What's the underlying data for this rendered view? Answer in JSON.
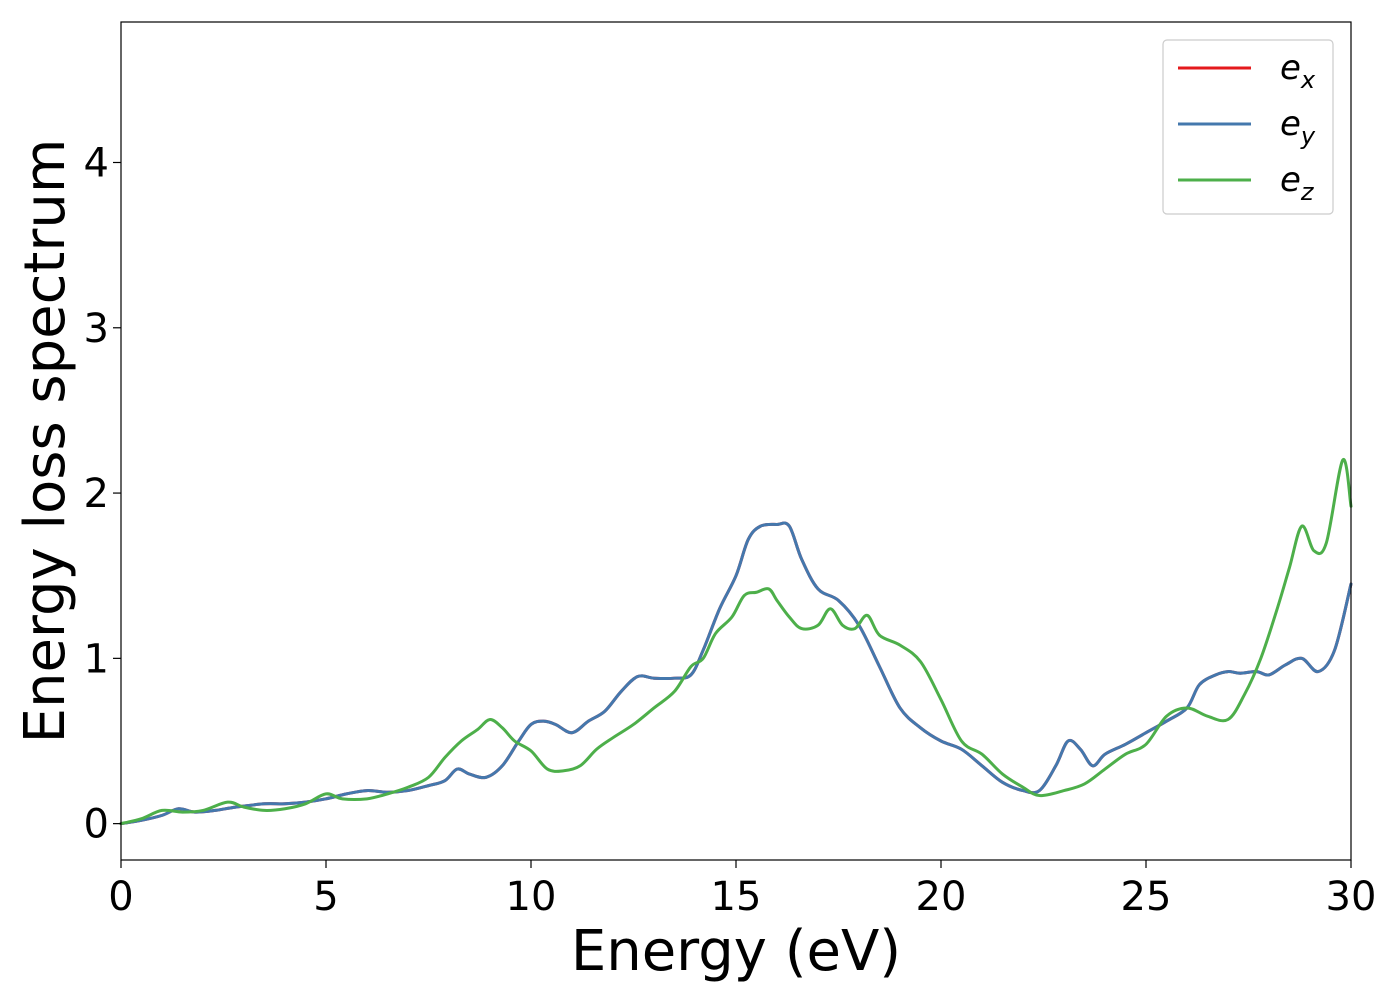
{
  "chart_data": {
    "type": "line",
    "xlabel": "Energy (eV)",
    "ylabel": "Energy loss spectrum",
    "xlim": [
      0,
      30
    ],
    "ylim": [
      -0.22,
      4.85
    ],
    "xticks": [
      0,
      5,
      10,
      15,
      20,
      25,
      30
    ],
    "xtick_labels": [
      "0",
      "5",
      "10",
      "15",
      "20",
      "25",
      "30"
    ],
    "yticks": [
      0,
      1,
      2,
      3,
      4
    ],
    "ytick_labels": [
      "0",
      "1",
      "2",
      "3",
      "4"
    ],
    "grid": false,
    "legend_position": "top-right",
    "series": [
      {
        "name": "e_x",
        "label_base": "e",
        "label_sub": "x",
        "color": "#e41a1c",
        "x": [
          0,
          0.5,
          1.0,
          1.4,
          1.8,
          2.3,
          2.8,
          3.5,
          4.0,
          4.5,
          5.0,
          5.5,
          6.0,
          6.5,
          7.0,
          7.5,
          7.9,
          8.2,
          8.5,
          8.9,
          9.3,
          9.7,
          10.0,
          10.3,
          10.6,
          11.0,
          11.4,
          11.8,
          12.2,
          12.6,
          13.0,
          13.5,
          13.9,
          14.2,
          14.6,
          15.0,
          15.3,
          15.6,
          16.0,
          16.3,
          16.6,
          17.0,
          17.5,
          18.0,
          18.5,
          19.0,
          19.5,
          20.0,
          20.5,
          21.0,
          21.5,
          22.0,
          22.4,
          22.8,
          23.1,
          23.4,
          23.7,
          24.0,
          24.5,
          25.0,
          25.5,
          26.0,
          26.3,
          26.7,
          27.0,
          27.3,
          27.7,
          28.0,
          28.4,
          28.8,
          29.2,
          29.6,
          30.0
        ],
        "values": [
          0.0,
          0.02,
          0.05,
          0.09,
          0.07,
          0.08,
          0.1,
          0.12,
          0.12,
          0.13,
          0.15,
          0.18,
          0.2,
          0.19,
          0.2,
          0.23,
          0.26,
          0.33,
          0.3,
          0.28,
          0.35,
          0.5,
          0.6,
          0.62,
          0.6,
          0.55,
          0.62,
          0.68,
          0.8,
          0.89,
          0.88,
          0.88,
          0.9,
          1.05,
          1.3,
          1.5,
          1.72,
          1.8,
          1.81,
          1.8,
          1.6,
          1.42,
          1.35,
          1.2,
          0.95,
          0.7,
          0.58,
          0.5,
          0.45,
          0.35,
          0.25,
          0.2,
          0.2,
          0.35,
          0.5,
          0.45,
          0.35,
          0.42,
          0.48,
          0.55,
          0.62,
          0.7,
          0.84,
          0.9,
          0.92,
          0.91,
          0.92,
          0.9,
          0.96,
          1.0,
          0.92,
          1.05,
          1.45
        ]
      },
      {
        "name": "e_y",
        "label_base": "e",
        "label_sub": "y",
        "color": "#4478ad",
        "x": [
          0,
          0.5,
          1.0,
          1.4,
          1.8,
          2.3,
          2.8,
          3.5,
          4.0,
          4.5,
          5.0,
          5.5,
          6.0,
          6.5,
          7.0,
          7.5,
          7.9,
          8.2,
          8.5,
          8.9,
          9.3,
          9.7,
          10.0,
          10.3,
          10.6,
          11.0,
          11.4,
          11.8,
          12.2,
          12.6,
          13.0,
          13.5,
          13.9,
          14.2,
          14.6,
          15.0,
          15.3,
          15.6,
          16.0,
          16.3,
          16.6,
          17.0,
          17.5,
          18.0,
          18.5,
          19.0,
          19.5,
          20.0,
          20.5,
          21.0,
          21.5,
          22.0,
          22.4,
          22.8,
          23.1,
          23.4,
          23.7,
          24.0,
          24.5,
          25.0,
          25.5,
          26.0,
          26.3,
          26.7,
          27.0,
          27.3,
          27.7,
          28.0,
          28.4,
          28.8,
          29.2,
          29.6,
          30.0
        ],
        "values": [
          0.0,
          0.02,
          0.05,
          0.09,
          0.07,
          0.08,
          0.1,
          0.12,
          0.12,
          0.13,
          0.15,
          0.18,
          0.2,
          0.19,
          0.2,
          0.23,
          0.26,
          0.33,
          0.3,
          0.28,
          0.35,
          0.5,
          0.6,
          0.62,
          0.6,
          0.55,
          0.62,
          0.68,
          0.8,
          0.89,
          0.88,
          0.88,
          0.9,
          1.05,
          1.3,
          1.5,
          1.72,
          1.8,
          1.81,
          1.8,
          1.6,
          1.42,
          1.35,
          1.2,
          0.95,
          0.7,
          0.58,
          0.5,
          0.45,
          0.35,
          0.25,
          0.2,
          0.2,
          0.35,
          0.5,
          0.45,
          0.35,
          0.42,
          0.48,
          0.55,
          0.62,
          0.7,
          0.84,
          0.9,
          0.92,
          0.91,
          0.92,
          0.9,
          0.96,
          1.0,
          0.92,
          1.05,
          1.45
        ]
      },
      {
        "name": "e_z",
        "label_base": "e",
        "label_sub": "z",
        "color": "#4daf4a",
        "x": [
          0,
          0.5,
          1.0,
          1.5,
          2.0,
          2.6,
          3.0,
          3.5,
          4.0,
          4.5,
          5.0,
          5.4,
          6.0,
          6.5,
          7.0,
          7.5,
          7.9,
          8.3,
          8.7,
          9.0,
          9.3,
          9.6,
          10.0,
          10.4,
          10.8,
          11.2,
          11.6,
          12.0,
          12.5,
          13.0,
          13.5,
          13.9,
          14.2,
          14.5,
          14.9,
          15.2,
          15.5,
          15.8,
          16.0,
          16.3,
          16.6,
          17.0,
          17.3,
          17.6,
          17.9,
          18.2,
          18.5,
          19.0,
          19.5,
          20.0,
          20.5,
          21.0,
          21.5,
          22.0,
          22.4,
          23.0,
          23.5,
          24.0,
          24.5,
          25.0,
          25.5,
          26.0,
          26.5,
          27.0,
          27.4,
          27.8,
          28.2,
          28.5,
          28.8,
          29.1,
          29.4,
          29.8,
          30.0
        ],
        "values": [
          0.0,
          0.03,
          0.08,
          0.07,
          0.08,
          0.13,
          0.1,
          0.08,
          0.09,
          0.12,
          0.18,
          0.15,
          0.15,
          0.18,
          0.22,
          0.28,
          0.4,
          0.5,
          0.57,
          0.63,
          0.58,
          0.5,
          0.44,
          0.33,
          0.32,
          0.35,
          0.45,
          0.52,
          0.6,
          0.7,
          0.8,
          0.95,
          1.0,
          1.15,
          1.25,
          1.38,
          1.4,
          1.42,
          1.35,
          1.25,
          1.18,
          1.2,
          1.3,
          1.2,
          1.18,
          1.26,
          1.14,
          1.08,
          0.98,
          0.75,
          0.5,
          0.42,
          0.3,
          0.22,
          0.17,
          0.2,
          0.24,
          0.33,
          0.42,
          0.48,
          0.65,
          0.7,
          0.65,
          0.63,
          0.78,
          1.0,
          1.3,
          1.55,
          1.8,
          1.65,
          1.7,
          2.2,
          1.92
        ]
      }
    ]
  }
}
